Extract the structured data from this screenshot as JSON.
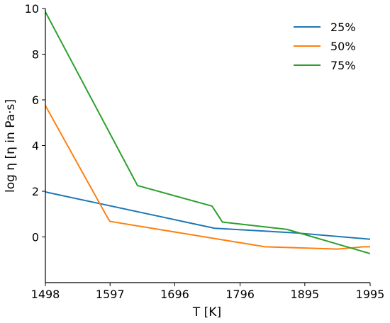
{
  "chart_data": {
    "type": "line",
    "title": "",
    "xlabel": "T [K]",
    "ylabel": "log η [η in Pa·s]",
    "xlim": [
      1498,
      1995
    ],
    "ylim": [
      -2,
      10
    ],
    "xticks": [
      1498,
      1597,
      1696,
      1796,
      1895,
      1995
    ],
    "yticks": [
      0,
      2,
      4,
      6,
      8,
      10
    ],
    "legend_position": "top-right",
    "grid": false,
    "series": [
      {
        "name": "25%",
        "color": "#1f77b4",
        "x": [
          1498,
          1757,
          1880,
          1995
        ],
        "y": [
          1.97,
          0.38,
          0.18,
          -0.1
        ]
      },
      {
        "name": "50%",
        "color": "#ff7f0e",
        "x": [
          1498,
          1594,
          1597,
          1834,
          1945,
          1985,
          1995
        ],
        "y": [
          5.75,
          0.8,
          0.68,
          -0.43,
          -0.53,
          -0.43,
          -0.43
        ]
      },
      {
        "name": "75%",
        "color": "#2ca02c",
        "x": [
          1498,
          1639,
          1753,
          1769,
          1868,
          1995
        ],
        "y": [
          9.85,
          2.25,
          1.35,
          0.65,
          0.33,
          -0.73
        ]
      }
    ]
  }
}
